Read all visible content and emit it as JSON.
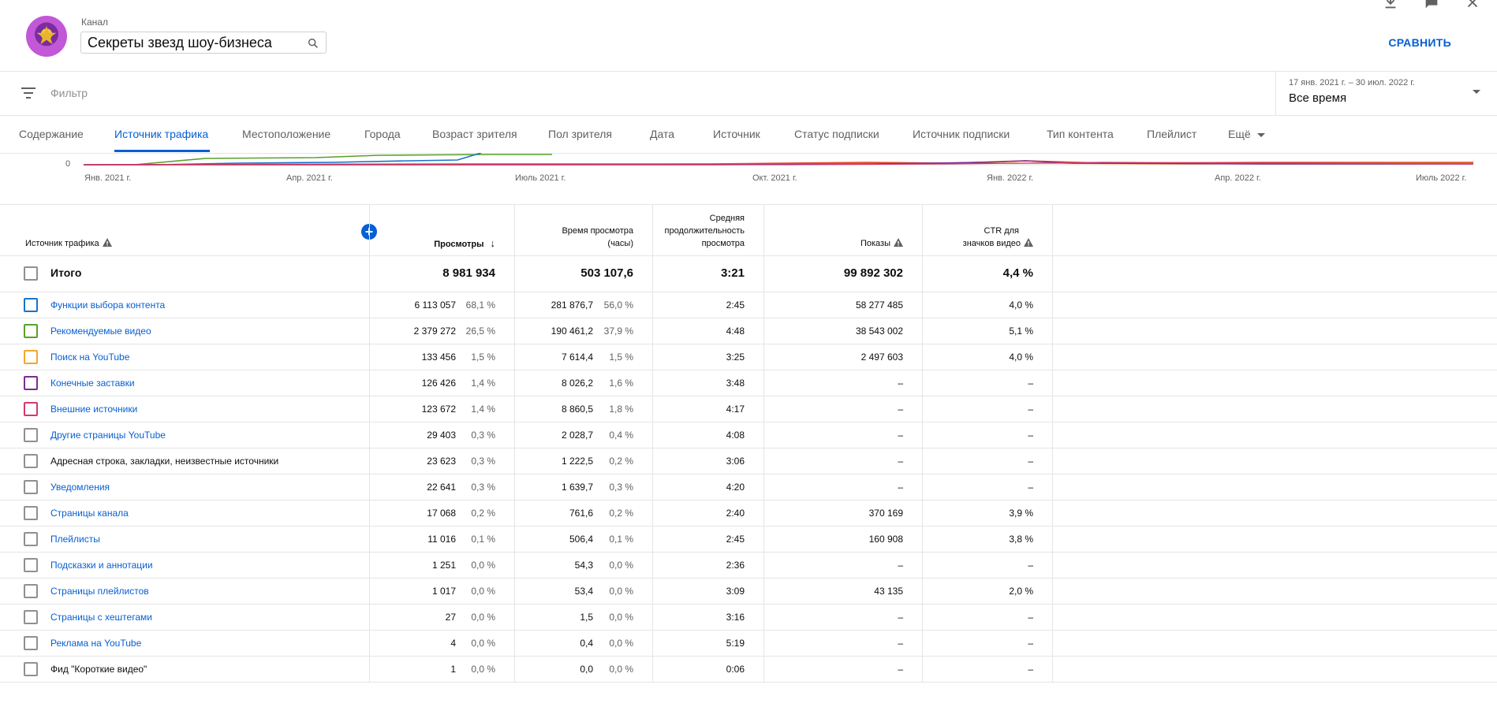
{
  "channel": {
    "label": "Канал",
    "name": "Секреты звезд шоу-бизнеса",
    "avatar_icon": "star-logo-icon"
  },
  "compare_label": "СРАВНИТЬ",
  "filter": {
    "placeholder": "Фильтр",
    "icon": "filter-list-icon"
  },
  "date": {
    "range": "17 янв. 2021 г. – 30 июл. 2022 г.",
    "value": "Все время"
  },
  "tabs": [
    {
      "label": "Содержание",
      "active": false
    },
    {
      "label": "Источник трафика",
      "active": true
    },
    {
      "label": "Местоположение",
      "active": false
    },
    {
      "label": "Города",
      "active": false
    },
    {
      "label": "Возраст зрителя",
      "active": false
    },
    {
      "label": "Пол зрителя",
      "active": false
    },
    {
      "label": "Дата",
      "active": false
    },
    {
      "label": "Источник",
      "active": false
    },
    {
      "label": "Статус подписки",
      "active": false
    },
    {
      "label": "Источник подписки",
      "active": false
    },
    {
      "label": "Тип контента",
      "active": false
    },
    {
      "label": "Плейлист",
      "active": false
    },
    {
      "label": "Ещё",
      "active": false
    }
  ],
  "chart": {
    "y_zero_label": "0",
    "x_ticks": [
      "Янв. 2021 г.",
      "Апр. 2021 г.",
      "Июль 2021 г.",
      "Окт. 2021 г.",
      "Янв. 2022 г.",
      "Апр. 2022 г.",
      "Июль 2022 г."
    ],
    "colors": [
      "#1a73c8",
      "#5aa02c",
      "#f2a72c",
      "#7b2d8e",
      "#d13a6a",
      "#e04a2e"
    ]
  },
  "table": {
    "headers": {
      "source": "Источник трафика",
      "views": "Просмотры",
      "watch_time_line1": "Время просмотра",
      "watch_time_line2": "(часы)",
      "avg_line1": "Средняя",
      "avg_line2": "продолжительность",
      "avg_line3": "просмотра",
      "impressions": "Показы",
      "ctr_line1": "CTR для",
      "ctr_line2": "значков видео"
    },
    "total": {
      "label": "Итого",
      "views": "8 981 934",
      "watch": "503 107,6",
      "avg": "3:21",
      "impressions": "99 892 302",
      "ctr": "4,4 %"
    },
    "rows": [
      {
        "source": "Функции выбора контента",
        "link": true,
        "color": "#1a73c8",
        "views": "6 113 057",
        "views_pct": "68,1 %",
        "watch": "281 876,7",
        "watch_pct": "56,0 %",
        "avg": "2:45",
        "impressions": "58 277 485",
        "ctr": "4,0 %"
      },
      {
        "source": "Рекомендуемые видео",
        "link": true,
        "color": "#5aa02c",
        "views": "2 379 272",
        "views_pct": "26,5 %",
        "watch": "190 461,2",
        "watch_pct": "37,9 %",
        "avg": "4:48",
        "impressions": "38 543 002",
        "ctr": "5,1 %"
      },
      {
        "source": "Поиск на YouTube",
        "link": true,
        "color": "#f2a72c",
        "views": "133 456",
        "views_pct": "1,5 %",
        "watch": "7 614,4",
        "watch_pct": "1,5 %",
        "avg": "3:25",
        "impressions": "2 497 603",
        "ctr": "4,0 %"
      },
      {
        "source": "Конечные заставки",
        "link": true,
        "color": "#7b2d8e",
        "views": "126 426",
        "views_pct": "1,4 %",
        "watch": "8 026,2",
        "watch_pct": "1,6 %",
        "avg": "3:48",
        "impressions": "–",
        "ctr": "–"
      },
      {
        "source": "Внешние источники",
        "link": true,
        "color": "#d13a6a",
        "views": "123 672",
        "views_pct": "1,4 %",
        "watch": "8 860,5",
        "watch_pct": "1,8 %",
        "avg": "4:17",
        "impressions": "–",
        "ctr": "–"
      },
      {
        "source": "Другие страницы YouTube",
        "link": true,
        "color": "#909090",
        "views": "29 403",
        "views_pct": "0,3 %",
        "watch": "2 028,7",
        "watch_pct": "0,4 %",
        "avg": "4:08",
        "impressions": "–",
        "ctr": "–"
      },
      {
        "source": "Адресная строка, закладки, неизвестные источники",
        "link": false,
        "color": "#909090",
        "views": "23 623",
        "views_pct": "0,3 %",
        "watch": "1 222,5",
        "watch_pct": "0,2 %",
        "avg": "3:06",
        "impressions": "–",
        "ctr": "–"
      },
      {
        "source": "Уведомления",
        "link": true,
        "color": "#909090",
        "views": "22 641",
        "views_pct": "0,3 %",
        "watch": "1 639,7",
        "watch_pct": "0,3 %",
        "avg": "4:20",
        "impressions": "–",
        "ctr": "–"
      },
      {
        "source": "Страницы канала",
        "link": true,
        "color": "#909090",
        "views": "17 068",
        "views_pct": "0,2 %",
        "watch": "761,6",
        "watch_pct": "0,2 %",
        "avg": "2:40",
        "impressions": "370 169",
        "ctr": "3,9 %"
      },
      {
        "source": "Плейлисты",
        "link": true,
        "color": "#909090",
        "views": "11 016",
        "views_pct": "0,1 %",
        "watch": "506,4",
        "watch_pct": "0,1 %",
        "avg": "2:45",
        "impressions": "160 908",
        "ctr": "3,8 %"
      },
      {
        "source": "Подсказки и аннотации",
        "link": true,
        "color": "#909090",
        "views": "1 251",
        "views_pct": "0,0 %",
        "watch": "54,3",
        "watch_pct": "0,0 %",
        "avg": "2:36",
        "impressions": "–",
        "ctr": "–"
      },
      {
        "source": "Страницы плейлистов",
        "link": true,
        "color": "#909090",
        "views": "1 017",
        "views_pct": "0,0 %",
        "watch": "53,4",
        "watch_pct": "0,0 %",
        "avg": "3:09",
        "impressions": "43 135",
        "ctr": "2,0 %"
      },
      {
        "source": "Страницы с хештегами",
        "link": true,
        "color": "#909090",
        "views": "27",
        "views_pct": "0,0 %",
        "watch": "1,5",
        "watch_pct": "0,0 %",
        "avg": "3:16",
        "impressions": "–",
        "ctr": "–"
      },
      {
        "source": "Реклама на YouTube",
        "link": true,
        "color": "#909090",
        "views": "4",
        "views_pct": "0,0 %",
        "watch": "0,4",
        "watch_pct": "0,0 %",
        "avg": "5:19",
        "impressions": "–",
        "ctr": "–"
      },
      {
        "source": "Фид \"Короткие видео\"",
        "link": false,
        "color": "#909090",
        "views": "1",
        "views_pct": "0,0 %",
        "watch": "0,0",
        "watch_pct": "0,0 %",
        "avg": "0:06",
        "impressions": "–",
        "ctr": "–"
      }
    ]
  }
}
